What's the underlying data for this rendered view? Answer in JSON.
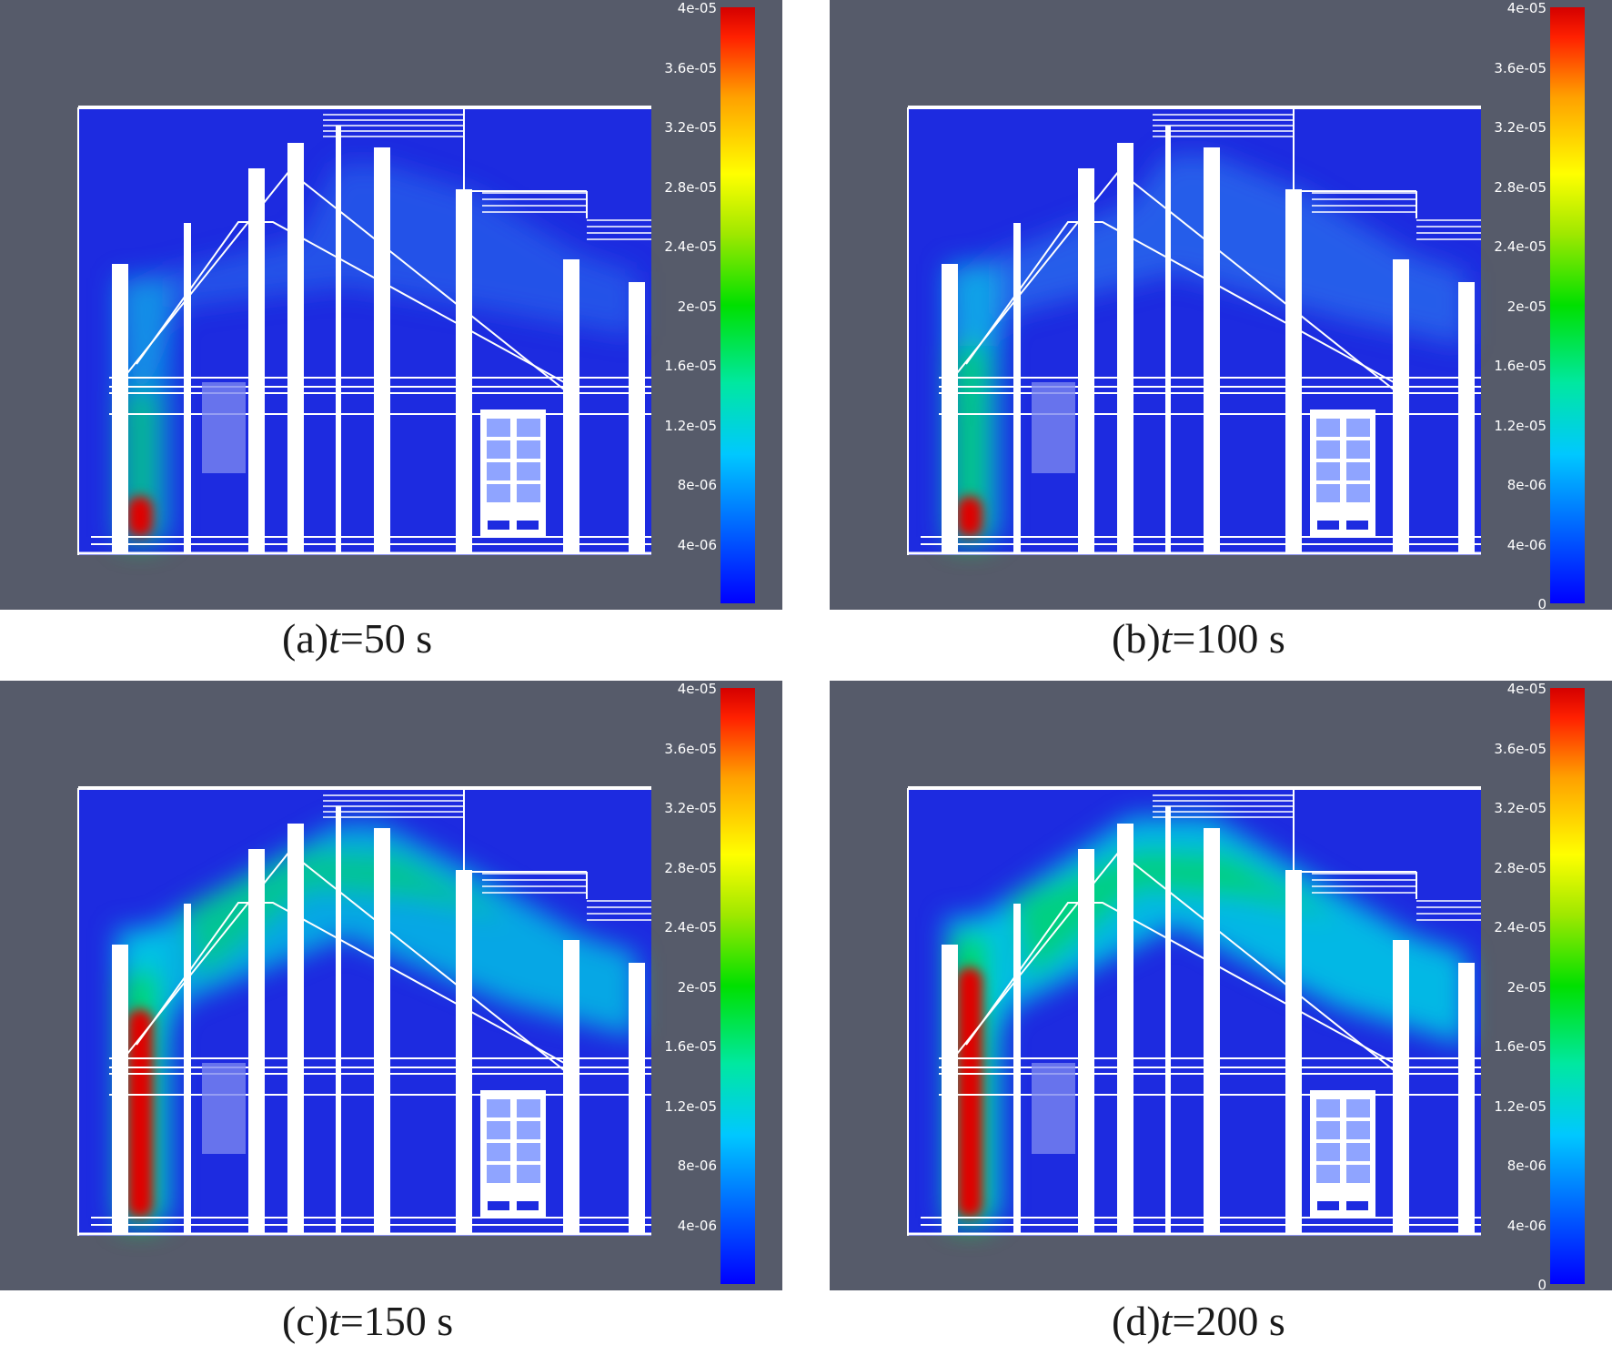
{
  "panels": [
    {
      "label": "(a)",
      "t_var": "t",
      "t_value": "=50 s",
      "colorbar_ticks": [
        "4e-05",
        "3.6e-05",
        "3.2e-05",
        "2.8e-05",
        "2.4e-05",
        "2e-05",
        "1.6e-05",
        "1.2e-05",
        "8e-06",
        "4e-06"
      ]
    },
    {
      "label": "(b)",
      "t_var": "t",
      "t_value": "=100 s",
      "colorbar_ticks": [
        "4e-05",
        "3.6e-05",
        "3.2e-05",
        "2.8e-05",
        "2.4e-05",
        "2e-05",
        "1.6e-05",
        "1.2e-05",
        "8e-06",
        "4e-06",
        "0"
      ]
    },
    {
      "label": "(c)",
      "t_var": "t",
      "t_value": "=150 s",
      "colorbar_ticks": [
        "4e-05",
        "3.6e-05",
        "3.2e-05",
        "2.8e-05",
        "2.4e-05",
        "2e-05",
        "1.6e-05",
        "1.2e-05",
        "8e-06",
        "4e-06"
      ]
    },
    {
      "label": "(d)",
      "t_var": "t",
      "t_value": "=200 s",
      "colorbar_ticks": [
        "4e-05",
        "3.6e-05",
        "3.2e-05",
        "2.8e-05",
        "2.4e-05",
        "2e-05",
        "1.6e-05",
        "1.2e-05",
        "8e-06",
        "4e-06",
        "0"
      ]
    }
  ],
  "colors": {
    "background": "#565b6a",
    "domain": "#1d2be0",
    "structure": "#ffffff",
    "plume_low": "#00c8e6",
    "plume_mid": "#00d860",
    "plume_high": "#e00000"
  }
}
